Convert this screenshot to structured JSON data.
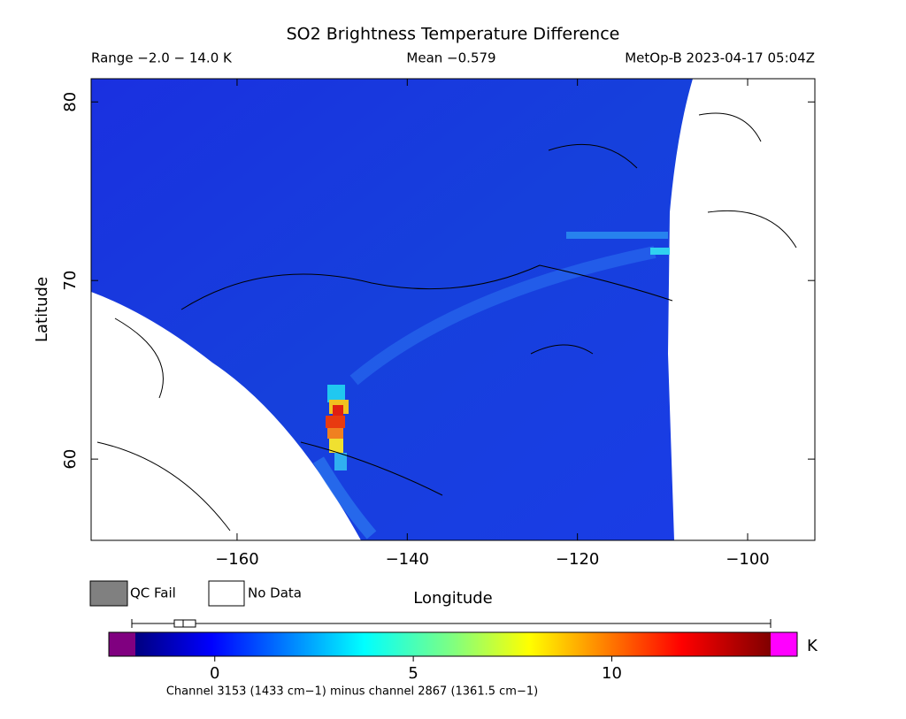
{
  "header": {
    "title": "SO2 Brightness Temperature Difference",
    "range_label": "Range −2.0 − 14.0 K",
    "mean_label": "Mean −0.579",
    "satellite_label": "MetOp-B 2023-04-17 05:04Z"
  },
  "map": {
    "x_label": "Longitude",
    "y_label": "Latitude",
    "xlim": [
      -177.15,
      -92.1
    ],
    "ylim": [
      55.45,
      81.3
    ],
    "xticks": [
      {
        "value": -160,
        "label": "−160"
      },
      {
        "value": -140,
        "label": "−140"
      },
      {
        "value": -120,
        "label": "−120"
      },
      {
        "value": -100,
        "label": "−100"
      }
    ],
    "yticks": [
      60,
      70,
      80
    ]
  },
  "legend": {
    "items": [
      "QC Fail",
      "No Data"
    ]
  },
  "colorbar": {
    "min": -2,
    "max": 14,
    "ticks": [
      0,
      5,
      10
    ],
    "unit": "K"
  },
  "footnote": "Channel 3153 (1433 cm−1) minus channel 2867 (1361.5 cm−1)"
}
